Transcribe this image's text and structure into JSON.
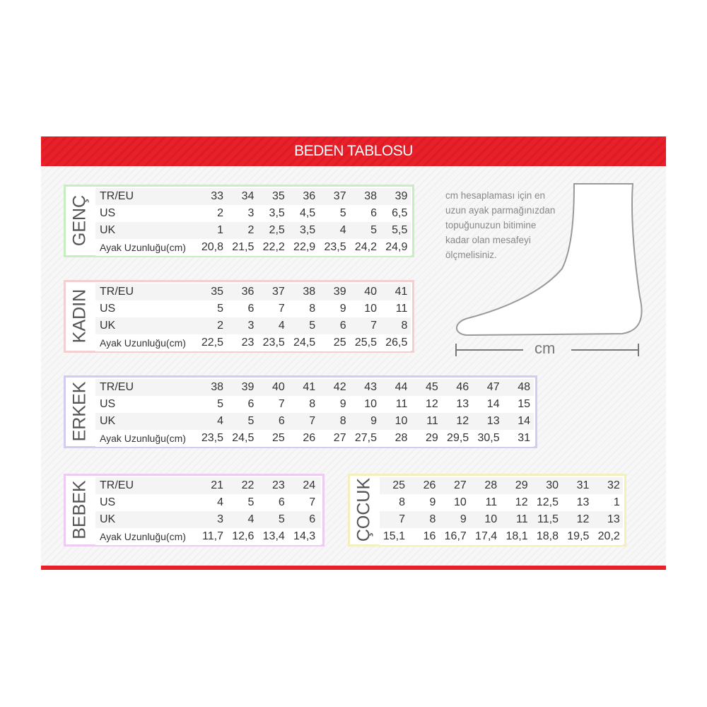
{
  "header": {
    "title": "BEDEN TABLOSU"
  },
  "sections": [
    {
      "label": "GENÇ",
      "rows": [
        {
          "label": "TR/EU",
          "values": [
            "33",
            "34",
            "35",
            "36",
            "37",
            "38",
            "39"
          ]
        },
        {
          "label": "US",
          "values": [
            "2",
            "3",
            "3,5",
            "4,5",
            "5",
            "6",
            "6,5"
          ]
        },
        {
          "label": "UK",
          "values": [
            "1",
            "2",
            "2,5",
            "3,5",
            "4",
            "5",
            "5,5"
          ]
        },
        {
          "label": "Ayak Uzunluğu(cm)",
          "values": [
            "20,8",
            "21,5",
            "22,2",
            "22,9",
            "23,5",
            "24,2",
            "24,9"
          ]
        }
      ]
    },
    {
      "label": "KADIN",
      "rows": [
        {
          "label": "TR/EU",
          "values": [
            "35",
            "36",
            "37",
            "38",
            "39",
            "40",
            "41"
          ]
        },
        {
          "label": "US",
          "values": [
            "5",
            "6",
            "7",
            "8",
            "9",
            "10",
            "11"
          ]
        },
        {
          "label": "UK",
          "values": [
            "2",
            "3",
            "4",
            "5",
            "6",
            "7",
            "8"
          ]
        },
        {
          "label": "Ayak Uzunluğu(cm)",
          "values": [
            "22,5",
            "23",
            "23,5",
            "24,5",
            "25",
            "25,5",
            "26,5"
          ]
        }
      ]
    },
    {
      "label": "ERKEK",
      "rows": [
        {
          "label": "TR/EU",
          "values": [
            "38",
            "39",
            "40",
            "41",
            "42",
            "43",
            "44",
            "45",
            "46",
            "47",
            "48"
          ]
        },
        {
          "label": "US",
          "values": [
            "5",
            "6",
            "7",
            "8",
            "9",
            "10",
            "11",
            "12",
            "13",
            "14",
            "15"
          ]
        },
        {
          "label": "UK",
          "values": [
            "4",
            "5",
            "6",
            "7",
            "8",
            "9",
            "10",
            "11",
            "12",
            "13",
            "14"
          ]
        },
        {
          "label": "Ayak Uzunluğu(cm)",
          "values": [
            "23,5",
            "24,5",
            "25",
            "26",
            "27",
            "27,5",
            "28",
            "29",
            "29,5",
            "30,5",
            "31"
          ]
        }
      ]
    },
    {
      "label": "BEBEK",
      "rows": [
        {
          "label": "TR/EU",
          "values": [
            "21",
            "22",
            "23",
            "24"
          ]
        },
        {
          "label": "US",
          "values": [
            "4",
            "5",
            "6",
            "7"
          ]
        },
        {
          "label": "UK",
          "values": [
            "3",
            "4",
            "5",
            "6"
          ]
        },
        {
          "label": "Ayak Uzunluğu(cm)",
          "values": [
            "11,7",
            "12,6",
            "13,4",
            "14,3"
          ]
        }
      ]
    },
    {
      "label": "ÇOCUK",
      "rows": [
        {
          "values": [
            "25",
            "26",
            "27",
            "28",
            "29",
            "30",
            "31",
            "32"
          ]
        },
        {
          "values": [
            "8",
            "9",
            "10",
            "11",
            "12",
            "12,5",
            "13",
            "1"
          ]
        },
        {
          "values": [
            "7",
            "8",
            "9",
            "10",
            "11",
            "11,5",
            "12",
            "13"
          ]
        },
        {
          "values": [
            "15,1",
            "16",
            "16,7",
            "17,4",
            "18,1",
            "18,8",
            "19,5",
            "20,2"
          ]
        }
      ]
    }
  ],
  "note": {
    "lines": [
      "cm hesaplaması için en",
      "uzun ayak parmağınızdan",
      "topuğunuzun bitimine",
      "kadar olan mesafeyi",
      "ölçmelisiniz."
    ]
  },
  "foot": {
    "unit": "cm"
  }
}
